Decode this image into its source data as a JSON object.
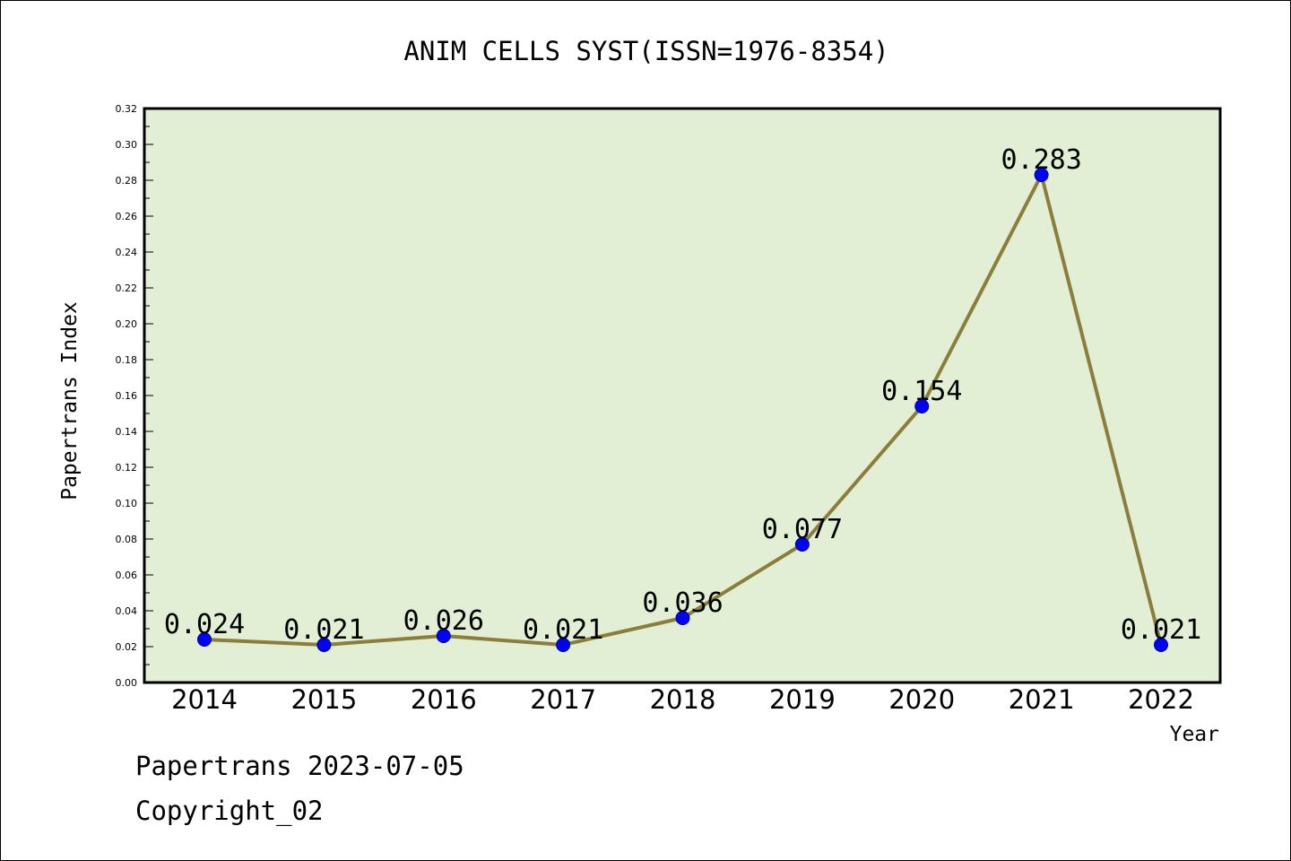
{
  "chart_data": {
    "type": "line",
    "title": "ANIM CELLS SYST(ISSN=1976-8354)",
    "xlabel": "Year",
    "ylabel": "Papertrans Index",
    "categories": [
      "2014",
      "2015",
      "2016",
      "2017",
      "2018",
      "2019",
      "2020",
      "2021",
      "2022"
    ],
    "series": [
      {
        "values": [
          0.024,
          0.021,
          0.026,
          0.021,
          0.036,
          0.077,
          0.154,
          0.283,
          0.021
        ],
        "labels": [
          "0.024",
          "0.021",
          "0.026",
          "0.021",
          "0.036",
          "0.077",
          "0.154",
          "0.283",
          "0.021"
        ]
      }
    ],
    "ylim": [
      0,
      0.32
    ],
    "yticks": [
      "0.00",
      "0.02",
      "0.04",
      "0.06",
      "0.08",
      "0.10",
      "0.12",
      "0.14",
      "0.16",
      "0.18",
      "0.20",
      "0.22",
      "0.24",
      "0.26",
      "0.28",
      "0.30",
      "0.32"
    ],
    "grid": false,
    "legend": "none",
    "colors": {
      "plot_background": "#e2efd5",
      "line": "#8b7d3a",
      "marker": "#0000ff",
      "axis": "#000000"
    }
  },
  "footer": {
    "line1": "Papertrans 2023-07-05",
    "line2": "Copyright_02"
  }
}
